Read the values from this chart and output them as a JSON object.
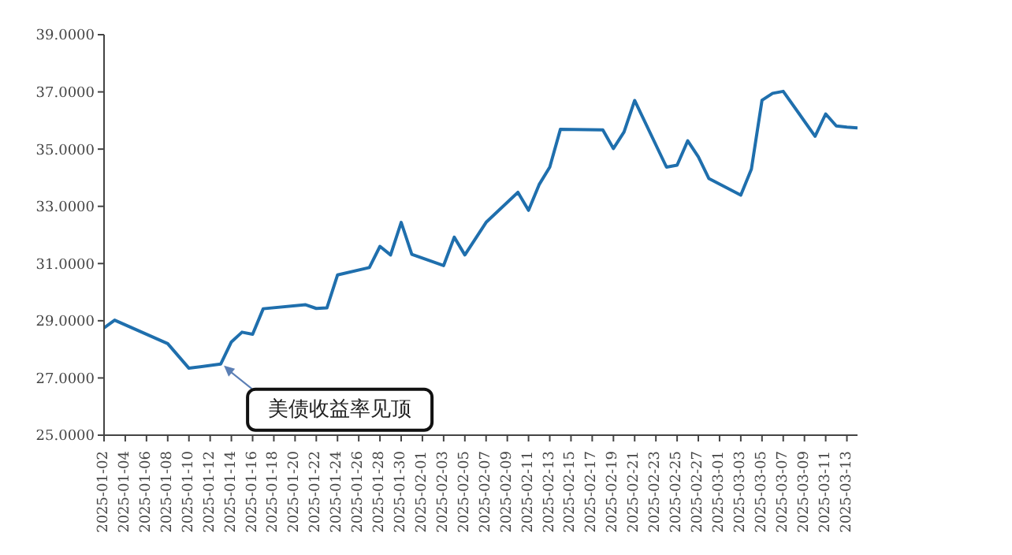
{
  "chart_data": {
    "type": "line",
    "x": [
      "2025-01-02",
      "2025-01-03",
      "2025-01-08",
      "2025-01-10",
      "2025-01-13",
      "2025-01-14",
      "2025-01-15",
      "2025-01-16",
      "2025-01-17",
      "2025-01-21",
      "2025-01-22",
      "2025-01-23",
      "2025-01-24",
      "2025-01-27",
      "2025-01-28",
      "2025-01-29",
      "2025-01-30",
      "2025-01-31",
      "2025-02-03",
      "2025-02-04",
      "2025-02-05",
      "2025-02-07",
      "2025-02-10",
      "2025-02-11",
      "2025-02-12",
      "2025-02-13",
      "2025-02-14",
      "2025-02-18",
      "2025-02-19",
      "2025-02-20",
      "2025-02-21",
      "2025-02-24",
      "2025-02-25",
      "2025-02-26",
      "2025-02-27",
      "2025-02-28",
      "2025-03-03",
      "2025-03-04",
      "2025-03-05",
      "2025-03-06",
      "2025-03-07",
      "2025-03-10",
      "2025-03-11",
      "2025-03-12",
      "2025-03-13",
      "2025-03-14"
    ],
    "series": [
      {
        "color": "#1f6fad",
        "values": [
          28.75,
          29.02,
          28.2,
          27.34,
          27.49,
          28.26,
          28.6,
          28.53,
          29.42,
          29.56,
          29.43,
          29.45,
          30.6,
          30.86,
          31.6,
          31.3,
          32.44,
          31.32,
          30.93,
          31.92,
          31.3,
          32.44,
          33.49,
          32.86,
          33.76,
          34.37,
          35.69,
          35.67,
          35.02,
          35.6,
          36.7,
          34.37,
          34.44,
          35.29,
          34.73,
          33.97,
          33.39,
          34.3,
          36.71,
          36.95,
          37.02,
          35.45,
          36.23,
          35.81,
          35.77,
          35.74
        ]
      }
    ],
    "xlim": [
      "2025-01-02",
      "2025-03-14"
    ],
    "xticks": [
      "2025-01-02",
      "2025-01-04",
      "2025-01-06",
      "2025-01-08",
      "2025-01-10",
      "2025-01-12",
      "2025-01-14",
      "2025-01-16",
      "2025-01-18",
      "2025-01-20",
      "2025-01-22",
      "2025-01-24",
      "2025-01-26",
      "2025-01-28",
      "2025-01-30",
      "2025-02-01",
      "2025-02-03",
      "2025-02-05",
      "2025-02-07",
      "2025-02-09",
      "2025-02-11",
      "2025-02-13",
      "2025-02-15",
      "2025-02-17",
      "2025-02-19",
      "2025-02-21",
      "2025-02-23",
      "2025-02-25",
      "2025-02-27",
      "2025-03-01",
      "2025-03-03",
      "2025-03-05",
      "2025-03-07",
      "2025-03-09",
      "2025-03-11",
      "2025-03-13"
    ],
    "ylim": [
      25,
      39
    ],
    "yticks": [
      {
        "value": 25,
        "label": "25.0000"
      },
      {
        "value": 27,
        "label": "27.0000"
      },
      {
        "value": 29,
        "label": "29.0000"
      },
      {
        "value": 31,
        "label": "31.0000"
      },
      {
        "value": 33,
        "label": "33.0000"
      },
      {
        "value": 35,
        "label": "35.0000"
      },
      {
        "value": 37,
        "label": "37.0000"
      },
      {
        "value": 39,
        "label": "39.0000"
      }
    ],
    "grid": false,
    "legend": false,
    "marker": "none",
    "line_style": "solid",
    "annotations": [
      {
        "text": "美债收益率见顶",
        "x": "2025-01-13",
        "y": 27.49
      }
    ]
  }
}
